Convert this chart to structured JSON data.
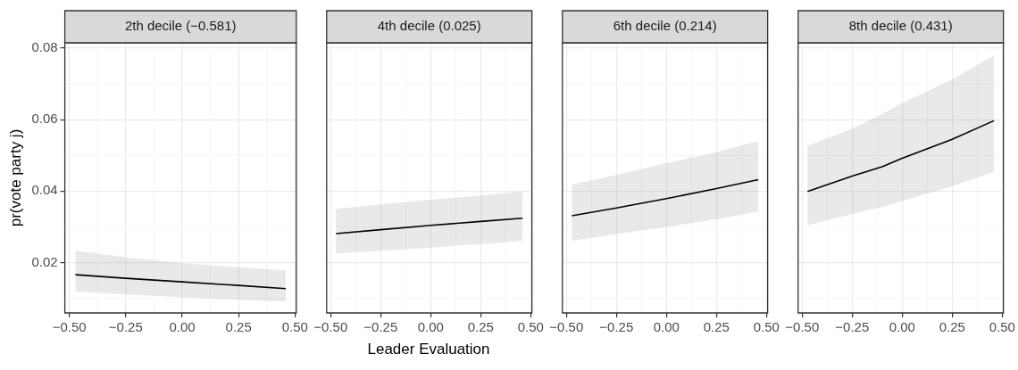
{
  "chart_data": [
    {
      "type": "line",
      "title": "2th decile (−0.581)",
      "ylabel": "pr(vote party j)",
      "x": [
        -0.473,
        -0.25,
        0,
        0.25,
        0.459
      ],
      "series": [
        {
          "color": "#000000",
          "values": [
            0.0166,
            0.0156,
            0.0146,
            0.0136,
            0.0127
          ],
          "lower": [
            0.0119,
            0.0111,
            0.0103,
            0.0096,
            0.0091
          ],
          "upper": [
            0.0233,
            0.0215,
            0.0198,
            0.0187,
            0.0178
          ]
        }
      ],
      "xlim": [
        -0.52,
        0.506
      ],
      "xticks": [
        {
          "value": -0.5,
          "label": "−0.50"
        },
        {
          "value": -0.25,
          "label": "−0.25"
        },
        {
          "value": 0,
          "label": "0.00"
        },
        {
          "value": 0.25,
          "label": "0.25"
        },
        {
          "value": 0.5,
          "label": "0.50"
        }
      ],
      "ylim": [
        0.0059,
        0.0815
      ],
      "yticks": [
        0.02,
        0.04,
        0.06,
        0.08
      ],
      "grid": true,
      "legend": false
    },
    {
      "type": "line",
      "title": "4th decile (0.025)",
      "xlabel": "Leader Evaluation",
      "x": [
        -0.473,
        -0.25,
        0,
        0.25,
        0.459
      ],
      "series": [
        {
          "color": "#000000",
          "values": [
            0.0281,
            0.0292,
            0.0304,
            0.0315,
            0.0324
          ],
          "lower": [
            0.0225,
            0.0233,
            0.0242,
            0.0252,
            0.0261
          ],
          "upper": [
            0.035,
            0.0363,
            0.0376,
            0.0388,
            0.0399
          ]
        }
      ],
      "xlim": [
        -0.52,
        0.506
      ],
      "xticks": [
        {
          "value": -0.5,
          "label": "−0.50"
        },
        {
          "value": -0.25,
          "label": "−0.25"
        },
        {
          "value": 0,
          "label": "0.00"
        },
        {
          "value": 0.25,
          "label": "0.25"
        },
        {
          "value": 0.5,
          "label": "0.50"
        }
      ],
      "ylim": [
        0.0059,
        0.0815
      ],
      "yticks": [
        0.02,
        0.04,
        0.06,
        0.08
      ],
      "grid": true,
      "legend": false,
      "tick_labels": "x"
    },
    {
      "type": "line",
      "title": "6th decile (0.214)",
      "x": [
        -0.473,
        -0.25,
        0,
        0.25,
        0.459
      ],
      "series": [
        {
          "color": "#000000",
          "values": [
            0.0331,
            0.0353,
            0.0379,
            0.0407,
            0.0432
          ],
          "lower": [
            0.0261,
            0.028,
            0.03,
            0.0321,
            0.0343
          ],
          "upper": [
            0.0418,
            0.0445,
            0.0478,
            0.0509,
            0.054
          ]
        }
      ],
      "xlim": [
        -0.52,
        0.506
      ],
      "xticks": [
        {
          "value": -0.5,
          "label": "−0.50"
        },
        {
          "value": -0.25,
          "label": "−0.25"
        },
        {
          "value": 0,
          "label": "0.00"
        },
        {
          "value": 0.25,
          "label": "0.25"
        },
        {
          "value": 0.5,
          "label": "0.50"
        }
      ],
      "ylim": [
        0.0059,
        0.0815
      ],
      "yticks": [
        0.02,
        0.04,
        0.06,
        0.08
      ],
      "grid": true,
      "legend": false,
      "tick_labels": "x"
    },
    {
      "type": "line",
      "title": "8th decile (0.431)",
      "x": [
        -0.473,
        -0.25,
        -0.1,
        0,
        0.25,
        0.459
      ],
      "series": [
        {
          "color": "#000000",
          "values": [
            0.0399,
            0.0442,
            0.0468,
            0.0492,
            0.0545,
            0.0597
          ],
          "lower": [
            0.0304,
            0.0336,
            0.0355,
            0.0373,
            0.0413,
            0.0454
          ],
          "upper": [
            0.0527,
            0.0575,
            0.0616,
            0.0646,
            0.0713,
            0.078
          ]
        }
      ],
      "xlim": [
        -0.52,
        0.506
      ],
      "xticks": [
        {
          "value": -0.5,
          "label": "−0.50"
        },
        {
          "value": -0.25,
          "label": "−0.25"
        },
        {
          "value": 0,
          "label": "0.00"
        },
        {
          "value": 0.25,
          "label": "0.25"
        },
        {
          "value": 0.5,
          "label": "0.50"
        }
      ],
      "ylim": [
        0.0059,
        0.0815
      ],
      "yticks": [
        0.02,
        0.04,
        0.06,
        0.08
      ],
      "grid": true,
      "legend": false,
      "tick_labels": "x"
    }
  ]
}
